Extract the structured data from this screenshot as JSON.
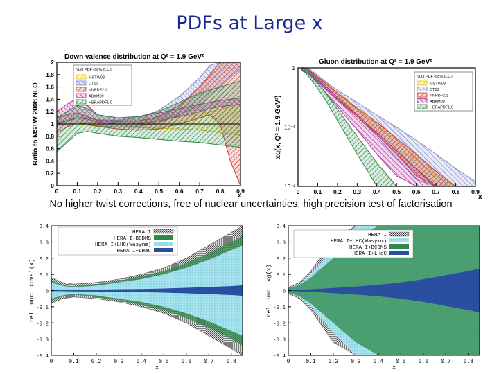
{
  "slide": {
    "title": "PDFs at Large x",
    "caption": "No higher twist corrections, free of nuclear uncertainties, high precision test of factorisation"
  },
  "chart_data": [
    {
      "id": "down-valence-ratio",
      "type": "area",
      "title": "Down valence distribution at Q² = 1.9 GeV²",
      "xlabel": "x",
      "ylabel": "Ratio to MSTW 2008 NLO",
      "xlim": [
        0,
        0.9
      ],
      "ylim": [
        0,
        2
      ],
      "xticks": [
        "0",
        "0.1",
        "0.2",
        "0.3",
        "0.4",
        "0.5",
        "0.6",
        "0.7",
        "0.8",
        "0.9"
      ],
      "yticks": [
        "0",
        "0.2",
        "0.4",
        "0.6",
        "0.8",
        "1",
        "1.2",
        "1.4",
        "1.6",
        "1.8",
        "2"
      ],
      "legend_title": "NLO PDF (68% C.L.)",
      "legend_position": "top-left",
      "x": [
        0,
        0.05,
        0.1,
        0.15,
        0.2,
        0.3,
        0.4,
        0.5,
        0.6,
        0.7,
        0.75,
        0.8,
        0.85,
        0.9
      ],
      "series": [
        {
          "name": "MSTW08",
          "color": "#e6c600",
          "lower": [
            1,
            1,
            1,
            0.98,
            0.96,
            0.95,
            0.94,
            0.93,
            0.92,
            0.9,
            0.88,
            0.86,
            0.84,
            0.82
          ],
          "upper": [
            1,
            1,
            1,
            1.02,
            1.04,
            1.05,
            1.06,
            1.08,
            1.12,
            1.16,
            1.2,
            1.24,
            1.28,
            1.32
          ]
        },
        {
          "name": "CT10",
          "color": "#7b86c8",
          "lower": [
            0.98,
            1.0,
            1.02,
            1.0,
            0.97,
            0.95,
            0.96,
            1.02,
            1.15,
            1.3,
            1.45,
            1.6,
            1.75,
            1.9
          ],
          "upper": [
            1.02,
            1.06,
            1.1,
            1.1,
            1.07,
            1.06,
            1.1,
            1.22,
            1.45,
            1.75,
            1.95,
            2.0,
            2.0,
            2.0
          ]
        },
        {
          "name": "NNPDF2.1",
          "color": "#d23a2a",
          "lower": [
            0.85,
            0.95,
            1.02,
            1.0,
            0.96,
            0.92,
            0.9,
            0.92,
            1.0,
            1.1,
            1.15,
            1.0,
            0.4,
            0.0
          ],
          "upper": [
            1.1,
            1.15,
            1.18,
            1.12,
            1.06,
            1.04,
            1.05,
            1.12,
            1.3,
            1.6,
            1.8,
            2.0,
            2.0,
            2.0
          ]
        },
        {
          "name": "ABKM09",
          "color": "#b02a9a",
          "lower": [
            1.0,
            1.05,
            1.1,
            1.08,
            1.03,
            1.0,
            1.0,
            1.05,
            1.12,
            1.2,
            1.25,
            1.28,
            1.3,
            1.32
          ],
          "upper": [
            1.2,
            1.32,
            1.42,
            1.3,
            1.15,
            1.1,
            1.12,
            1.18,
            1.25,
            1.32,
            1.35,
            1.38,
            1.4,
            1.42
          ]
        },
        {
          "name": "HERAPDF1.0",
          "color": "#2e8a48",
          "lower": [
            0.55,
            0.7,
            0.85,
            0.88,
            0.85,
            0.8,
            0.78,
            0.75,
            0.72,
            0.7,
            0.68,
            0.66,
            0.64,
            0.62
          ],
          "upper": [
            1.1,
            1.2,
            1.3,
            1.25,
            1.15,
            1.1,
            1.12,
            1.2,
            1.35,
            1.5,
            1.55,
            1.6,
            1.65,
            1.7
          ]
        }
      ]
    },
    {
      "id": "gluon-distribution",
      "type": "area",
      "title": "Gluon distribution at Q² = 1.9 GeV²",
      "xlabel": "x",
      "ylabel": "xg(x, Q² = 1.9 GeV²)",
      "xlim": [
        0,
        0.9
      ],
      "ylim": [
        0.01,
        1
      ],
      "yscale": "log",
      "xticks": [
        "0",
        "0.1",
        "0.2",
        "0.3",
        "0.4",
        "0.5",
        "0.6",
        "0.7",
        "0.8",
        "0.9"
      ],
      "yticks": [
        "10⁻²",
        "10⁻¹",
        "1"
      ],
      "legend_title": "NLO PDF (68% C.L.)",
      "legend_position": "top-right",
      "x": [
        0.02,
        0.05,
        0.1,
        0.15,
        0.2,
        0.3,
        0.4,
        0.5,
        0.6,
        0.7,
        0.8,
        0.9
      ],
      "series": [
        {
          "name": "MSTW08",
          "color": "#e6c600",
          "lower": [
            0.95,
            0.85,
            0.6,
            0.42,
            0.3,
            0.16,
            0.08,
            0.04,
            0.018,
            0.01,
            0.01,
            0.01
          ],
          "upper": [
            1.05,
            0.95,
            0.7,
            0.5,
            0.36,
            0.2,
            0.11,
            0.06,
            0.03,
            0.015,
            0.01,
            0.01
          ]
        },
        {
          "name": "CT10",
          "color": "#7b86c8",
          "lower": [
            0.9,
            0.8,
            0.58,
            0.4,
            0.28,
            0.15,
            0.07,
            0.03,
            0.013,
            0.01,
            0.01,
            0.01
          ],
          "upper": [
            1.1,
            1.0,
            0.75,
            0.55,
            0.42,
            0.26,
            0.16,
            0.1,
            0.06,
            0.035,
            0.02,
            0.012
          ]
        },
        {
          "name": "NNPDF2.1",
          "color": "#d23a2a",
          "lower": [
            0.9,
            0.82,
            0.6,
            0.42,
            0.3,
            0.15,
            0.075,
            0.035,
            0.015,
            0.01,
            0.01,
            0.01
          ],
          "upper": [
            1.05,
            0.95,
            0.7,
            0.52,
            0.38,
            0.21,
            0.12,
            0.065,
            0.035,
            0.018,
            0.01,
            0.01
          ]
        },
        {
          "name": "ABKM09",
          "color": "#b02a9a",
          "lower": [
            0.92,
            0.82,
            0.55,
            0.35,
            0.22,
            0.09,
            0.035,
            0.015,
            0.01,
            0.01,
            0.01,
            0.01
          ],
          "upper": [
            1.05,
            0.95,
            0.66,
            0.46,
            0.32,
            0.16,
            0.08,
            0.04,
            0.02,
            0.01,
            0.01,
            0.01
          ]
        },
        {
          "name": "HERAPDF1.0",
          "color": "#2e8a48",
          "lower": [
            0.9,
            0.75,
            0.45,
            0.25,
            0.13,
            0.035,
            0.01,
            0.01,
            0.01,
            0.01,
            0.01,
            0.01
          ],
          "upper": [
            1.0,
            0.88,
            0.56,
            0.34,
            0.2,
            0.07,
            0.025,
            0.01,
            0.01,
            0.01,
            0.01,
            0.01
          ]
        }
      ]
    },
    {
      "id": "xdv-relative-uncertainty",
      "type": "area",
      "title": "",
      "xlabel": "x",
      "ylabel": "rel. unc. xdval(x)",
      "xlim": [
        0,
        0.85
      ],
      "ylim": [
        -0.4,
        0.4
      ],
      "xticks": [
        "0",
        "0.1",
        "0.2",
        "0.3",
        "0.4",
        "0.5",
        "0.6",
        "0.7",
        "0.8"
      ],
      "yticks": [
        "-0.4",
        "-0.3",
        "-0.2",
        "-0.1",
        "0",
        "0.1",
        "0.2",
        "0.3",
        "0.4"
      ],
      "legend_position": "top-right",
      "x": [
        0,
        0.05,
        0.1,
        0.2,
        0.3,
        0.4,
        0.5,
        0.6,
        0.7,
        0.8,
        0.85
      ],
      "series": [
        {
          "name": "HERA I",
          "color": "#555555",
          "half_width": [
            0.08,
            0.05,
            0.04,
            0.05,
            0.07,
            0.1,
            0.14,
            0.2,
            0.28,
            0.36,
            0.4
          ]
        },
        {
          "name": "HERA I+BCDMS",
          "color": "#2e8a48",
          "half_width": [
            0.06,
            0.035,
            0.025,
            0.04,
            0.06,
            0.09,
            0.12,
            0.17,
            0.23,
            0.3,
            0.34
          ]
        },
        {
          "name": "HERA I+LHC(Wasymm)",
          "color": "#7fd2e0",
          "half_width": [
            0.05,
            0.03,
            0.02,
            0.03,
            0.05,
            0.07,
            0.1,
            0.14,
            0.19,
            0.25,
            0.28
          ]
        },
        {
          "name": "HERA I+LHeC",
          "color": "#2a4fa0",
          "half_width": [
            0.004,
            0.004,
            0.005,
            0.006,
            0.008,
            0.01,
            0.013,
            0.017,
            0.022,
            0.028,
            0.032
          ]
        }
      ]
    },
    {
      "id": "xg-relative-uncertainty",
      "type": "area",
      "title": "",
      "xlabel": "x",
      "ylabel": "rel. unc. xg(x)",
      "xlim": [
        0,
        0.85
      ],
      "ylim": [
        -0.4,
        0.4
      ],
      "xticks": [
        "0",
        "0.1",
        "0.2",
        "0.3",
        "0.4",
        "0.5",
        "0.6",
        "0.7",
        "0.8"
      ],
      "yticks": [
        "-0.4",
        "-0.3",
        "-0.2",
        "-0.1",
        "0",
        "0.1",
        "0.2",
        "0.3",
        "0.4"
      ],
      "legend_position": "top-left",
      "x": [
        0,
        0.05,
        0.1,
        0.15,
        0.2,
        0.3,
        0.4,
        0.5,
        0.6,
        0.7,
        0.8,
        0.85
      ],
      "series": [
        {
          "name": "HERA I",
          "color": "#555555",
          "half_width": [
            0.02,
            0.05,
            0.12,
            0.22,
            0.32,
            0.4,
            0.4,
            0.4,
            0.4,
            0.4,
            0.4,
            0.4
          ]
        },
        {
          "name": "HERA I+LHC(Wasymm)",
          "color": "#7fd2e0",
          "half_width": [
            0.015,
            0.04,
            0.1,
            0.18,
            0.26,
            0.4,
            0.4,
            0.4,
            0.4,
            0.4,
            0.4,
            0.4
          ]
        },
        {
          "name": "HERA I+BCDMS",
          "color": "#2e8a48",
          "half_width": [
            0.015,
            0.035,
            0.08,
            0.14,
            0.2,
            0.32,
            0.4,
            0.4,
            0.4,
            0.4,
            0.4,
            0.4
          ]
        },
        {
          "name": "HERA I+LHeC",
          "color": "#2a4fa0",
          "half_width": [
            0.003,
            0.005,
            0.008,
            0.012,
            0.016,
            0.025,
            0.035,
            0.05,
            0.07,
            0.095,
            0.12,
            0.135
          ]
        }
      ]
    }
  ]
}
